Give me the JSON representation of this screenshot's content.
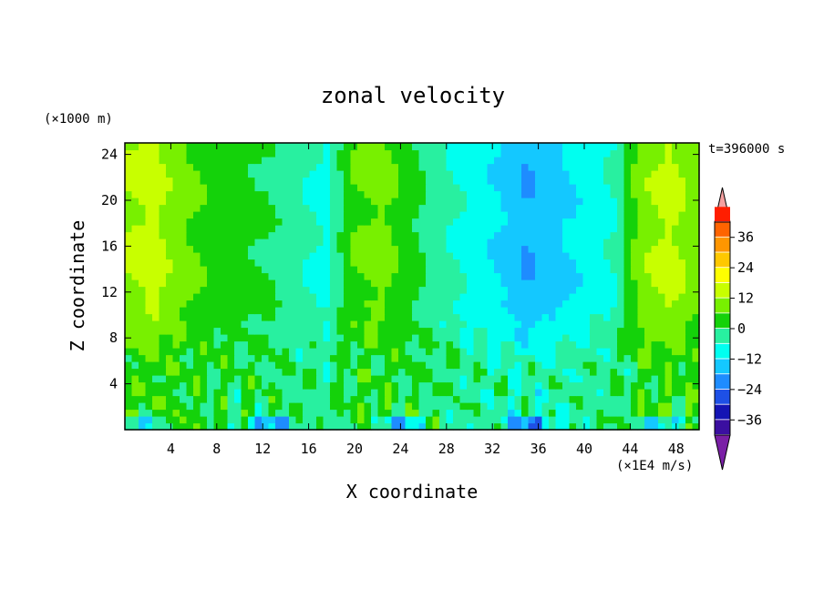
{
  "chart_data": {
    "type": "heatmap",
    "title": "zonal velocity",
    "xlabel": "X coordinate",
    "ylabel": "Z coordinate",
    "y_unit_label": "(×1000 m)",
    "time_label": "t=396000 s",
    "colorbar_unit_label": "(×1E4 m/s)",
    "xlim": [
      0,
      50
    ],
    "ylim": [
      0,
      25
    ],
    "x_ticks": [
      4,
      8,
      12,
      16,
      20,
      24,
      28,
      32,
      36,
      40,
      44,
      48
    ],
    "y_ticks": [
      4,
      8,
      12,
      16,
      20,
      24
    ],
    "colorbar": {
      "range": [
        -42,
        42
      ],
      "step": 6,
      "tick_labels": [
        "36",
        "24",
        "12",
        "0",
        "-12",
        "-24",
        "-36"
      ],
      "colors": [
        "#7a1fa6",
        "#3b0fa0",
        "#1414b4",
        "#1e50e6",
        "#1e8cff",
        "#14c8ff",
        "#00fff0",
        "#28f0a0",
        "#14d20a",
        "#78f000",
        "#c8ff00",
        "#ffff00",
        "#ffc800",
        "#ff9600",
        "#ff6400",
        "#ff1e00",
        "#f5a0a0"
      ],
      "extend": "both"
    },
    "grid": false,
    "legend": "colorbar-right",
    "columns": {
      "x": [
        0,
        2.5,
        5,
        7.5,
        10,
        12.5,
        15,
        17.5,
        20,
        22.5,
        25,
        27.5,
        30,
        32.5,
        35,
        37.5,
        40,
        42.5,
        45,
        47.5,
        50
      ],
      "upper_level_u": [
        12,
        14,
        8,
        4,
        2,
        0,
        -4,
        -8,
        6,
        8,
        2,
        -4,
        -8,
        -12,
        -18,
        -14,
        -10,
        -6,
        10,
        14,
        8
      ]
    }
  }
}
